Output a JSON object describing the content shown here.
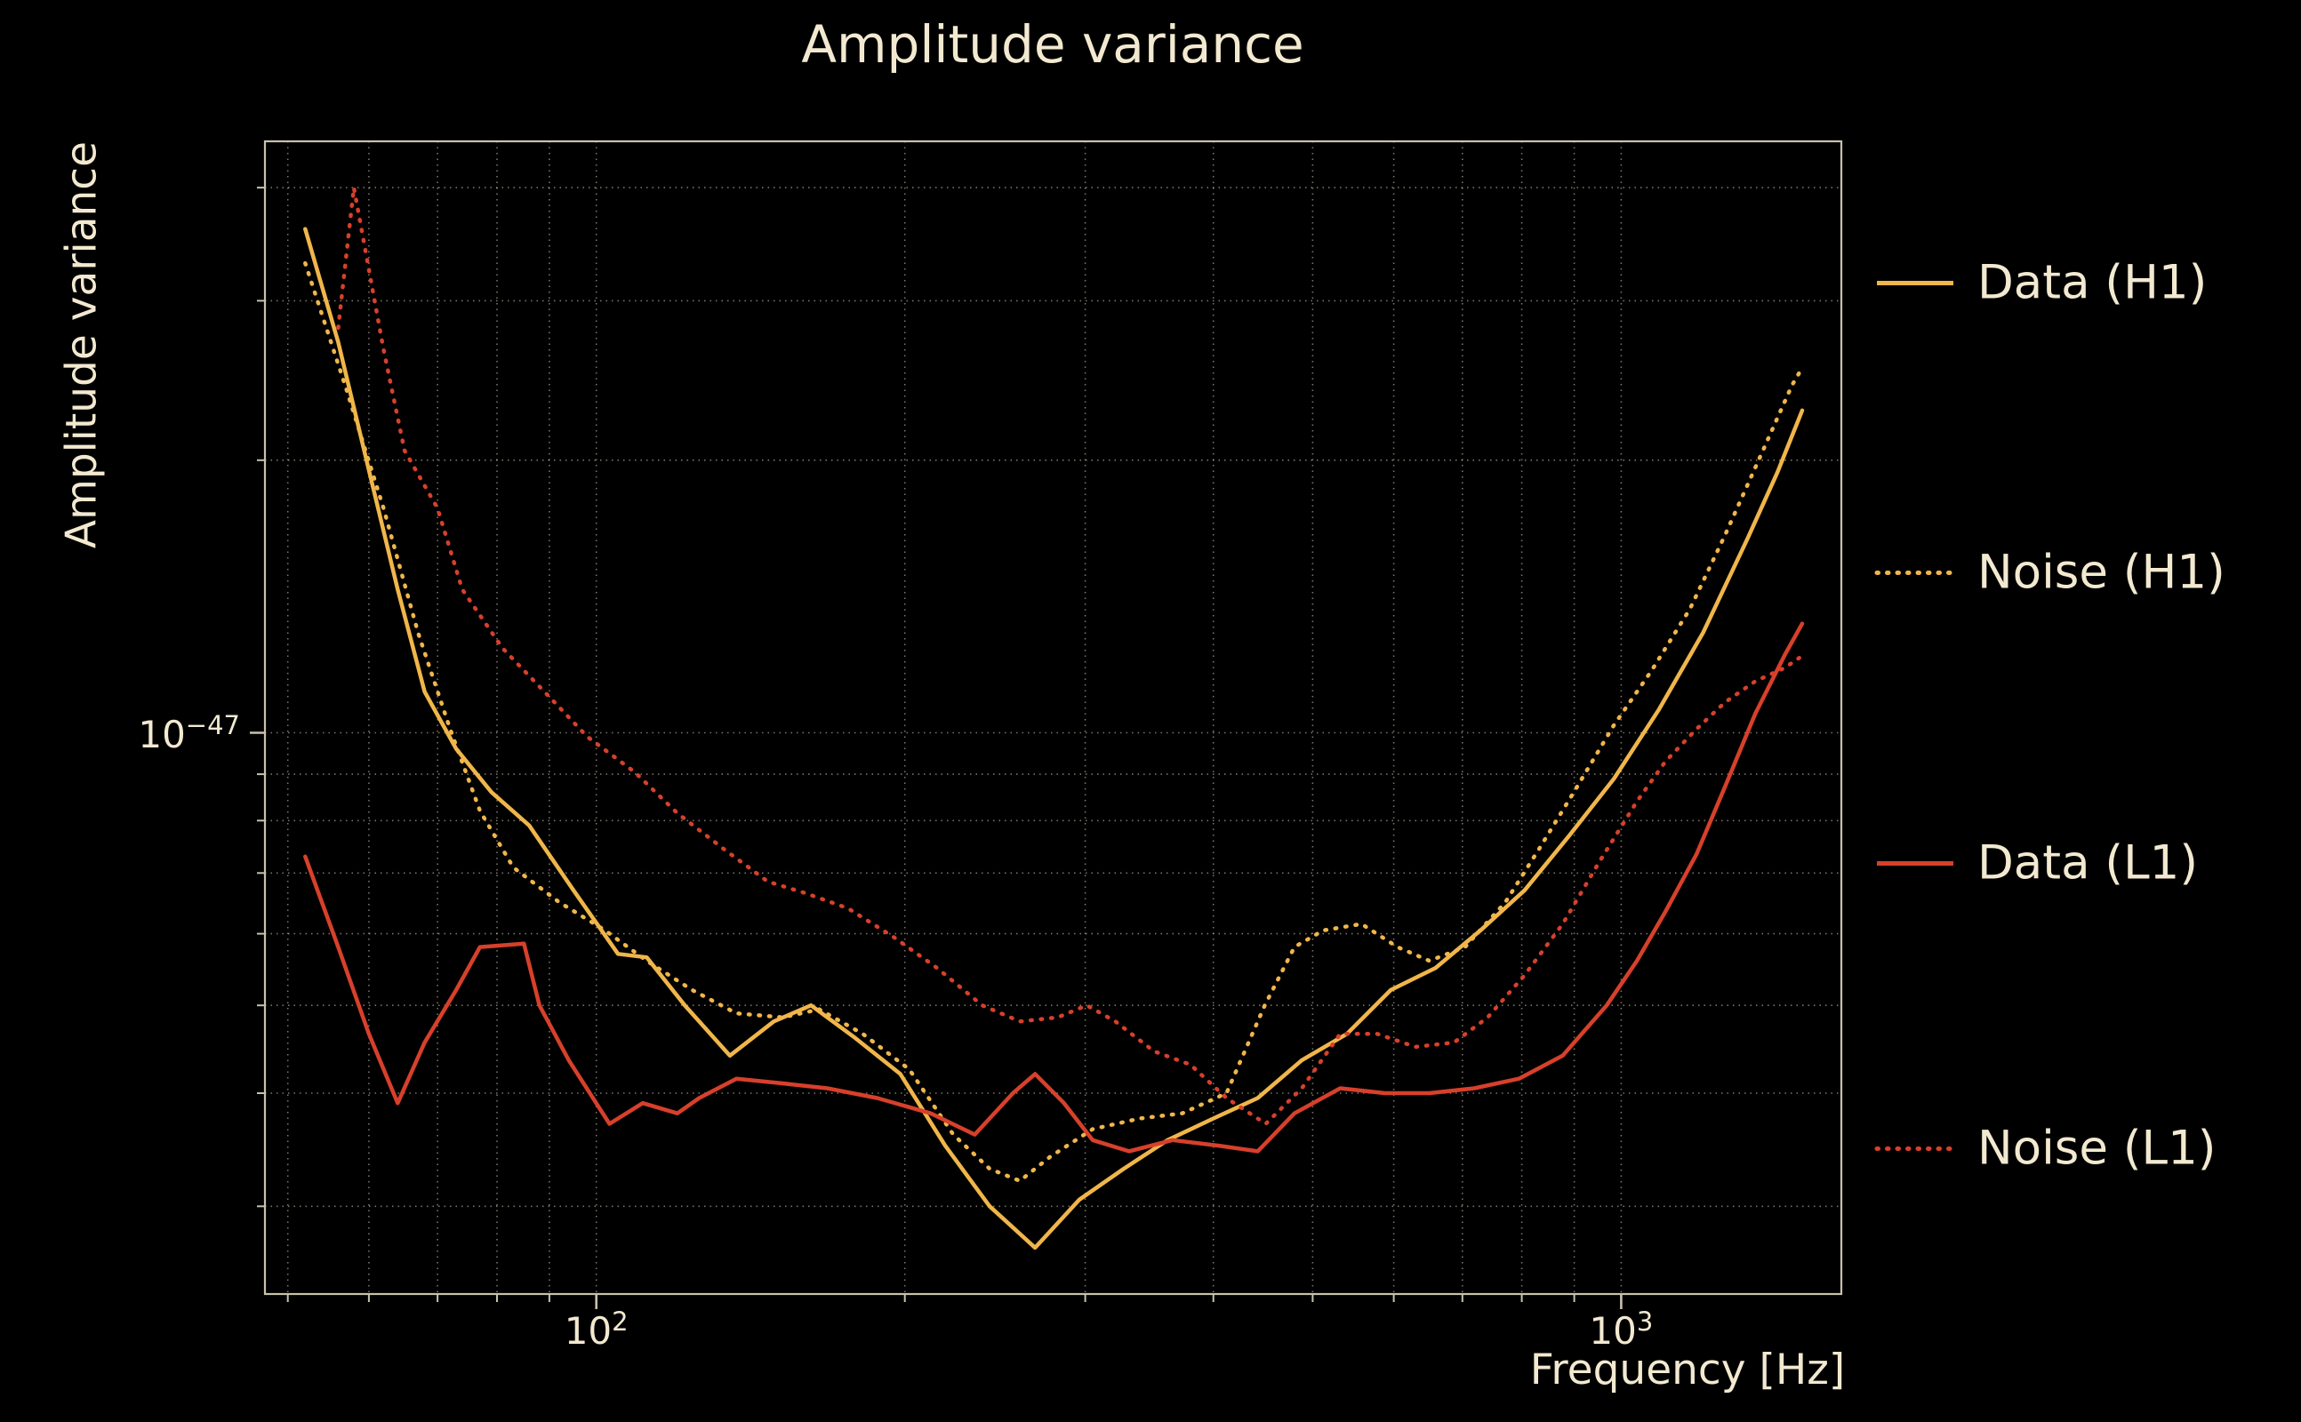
{
  "chart_data": {
    "type": "line",
    "title": "Amplitude variance",
    "xlabel": "Frequency [Hz]",
    "ylabel": "Amplitude variance",
    "xscale": "log",
    "yscale": "log",
    "grid": true,
    "legend_position": "right-outside",
    "background_color": "#000000",
    "text_color": "#f2e9d0",
    "xlim": [
      47.5,
      1640
    ],
    "ylim": [
      2.4e-48,
      4.5e-47
    ],
    "x_gridlines": [
      50,
      60,
      70,
      80,
      90,
      100,
      200,
      300,
      400,
      500,
      600,
      700,
      800,
      900,
      1000
    ],
    "y_gridlines": [
      3e-48,
      4e-48,
      5e-48,
      6e-48,
      7e-48,
      8e-48,
      9e-48,
      1e-47,
      2e-47,
      3e-47,
      4e-47
    ],
    "x_ticks": [
      {
        "value": 100,
        "base": "10",
        "exp": "2"
      },
      {
        "value": 1000,
        "base": "10",
        "exp": "3"
      }
    ],
    "y_ticks": [
      {
        "value": 1e-47,
        "base": "10",
        "exp": "−47"
      }
    ],
    "series": [
      {
        "name": "Data (H1)",
        "color": "#f0b64a",
        "line_style": "solid",
        "points": [
          [
            52,
            3.6e-47
          ],
          [
            56,
            2.7e-47
          ],
          [
            60,
            1.95e-47
          ],
          [
            64,
            1.44e-47
          ],
          [
            68,
            1.11e-47
          ],
          [
            73,
            9.6e-48
          ],
          [
            79,
            8.6e-48
          ],
          [
            86,
            7.9e-48
          ],
          [
            95,
            6.7e-48
          ],
          [
            105,
            5.7e-48
          ],
          [
            112,
            5.65e-48
          ],
          [
            122,
            5e-48
          ],
          [
            135,
            4.4e-48
          ],
          [
            149,
            4.8e-48
          ],
          [
            162,
            5e-48
          ],
          [
            179,
            4.6e-48
          ],
          [
            198,
            4.2e-48
          ],
          [
            219,
            3.5e-48
          ],
          [
            242,
            3e-48
          ],
          [
            268,
            2.7e-48
          ],
          [
            296,
            3.05e-48
          ],
          [
            327,
            3.3e-48
          ],
          [
            361,
            3.55e-48
          ],
          [
            400,
            3.75e-48
          ],
          [
            442,
            3.95e-48
          ],
          [
            488,
            4.35e-48
          ],
          [
            540,
            4.65e-48
          ],
          [
            596,
            5.2e-48
          ],
          [
            659,
            5.5e-48
          ],
          [
            729,
            6.05e-48
          ],
          [
            805,
            6.7e-48
          ],
          [
            890,
            7.7e-48
          ],
          [
            984,
            8.9e-48
          ],
          [
            1088,
            1.06e-47
          ],
          [
            1202,
            1.29e-47
          ],
          [
            1329,
            1.64e-47
          ],
          [
            1421,
            1.94e-47
          ],
          [
            1502,
            2.27e-47
          ]
        ]
      },
      {
        "name": "Noise (H1)",
        "color": "#f0b64a",
        "line_style": "dotted",
        "points": [
          [
            52,
            3.3e-47
          ],
          [
            57,
            2.4e-47
          ],
          [
            62,
            1.77e-47
          ],
          [
            67,
            1.29e-47
          ],
          [
            72,
            1.01e-47
          ],
          [
            77,
            8.2e-48
          ],
          [
            83,
            7.1e-48
          ],
          [
            92,
            6.5e-48
          ],
          [
            102,
            6.05e-48
          ],
          [
            112,
            5.6e-48
          ],
          [
            124,
            5.2e-48
          ],
          [
            137,
            4.9e-48
          ],
          [
            152,
            4.85e-48
          ],
          [
            165,
            4.95e-48
          ],
          [
            182,
            4.65e-48
          ],
          [
            202,
            4.25e-48
          ],
          [
            223,
            3.6e-48
          ],
          [
            242,
            3.3e-48
          ],
          [
            259,
            3.2e-48
          ],
          [
            277,
            3.4e-48
          ],
          [
            305,
            3.65e-48
          ],
          [
            339,
            3.75e-48
          ],
          [
            373,
            3.8e-48
          ],
          [
            412,
            4e-48
          ],
          [
            449,
            5e-48
          ],
          [
            480,
            5.8e-48
          ],
          [
            512,
            6.05e-48
          ],
          [
            558,
            6.15e-48
          ],
          [
            605,
            5.8e-48
          ],
          [
            650,
            5.6e-48
          ],
          [
            704,
            5.8e-48
          ],
          [
            771,
            6.5e-48
          ],
          [
            832,
            7.45e-48
          ],
          [
            902,
            8.65e-48
          ],
          [
            984,
            1.02e-47
          ],
          [
            1070,
            1.17e-47
          ],
          [
            1167,
            1.37e-47
          ],
          [
            1262,
            1.65e-47
          ],
          [
            1375,
            2.05e-47
          ],
          [
            1468,
            2.42e-47
          ],
          [
            1502,
            2.53e-47
          ]
        ]
      },
      {
        "name": "Data (L1)",
        "color": "#d7402b",
        "line_style": "solid",
        "points": [
          [
            52,
            7.3e-48
          ],
          [
            56,
            5.8e-48
          ],
          [
            60,
            4.65e-48
          ],
          [
            64,
            3.9e-48
          ],
          [
            68,
            4.55e-48
          ],
          [
            73,
            5.2e-48
          ],
          [
            77,
            5.8e-48
          ],
          [
            85,
            5.85e-48
          ],
          [
            88,
            5e-48
          ],
          [
            94,
            4.35e-48
          ],
          [
            103,
            3.7e-48
          ],
          [
            111,
            3.9e-48
          ],
          [
            120,
            3.8e-48
          ],
          [
            126,
            3.95e-48
          ],
          [
            137,
            4.15e-48
          ],
          [
            152,
            4.1e-48
          ],
          [
            168,
            4.05e-48
          ],
          [
            188,
            3.95e-48
          ],
          [
            212,
            3.8e-48
          ],
          [
            234,
            3.6e-48
          ],
          [
            255,
            4e-48
          ],
          [
            268,
            4.2e-48
          ],
          [
            286,
            3.9e-48
          ],
          [
            305,
            3.55e-48
          ],
          [
            331,
            3.45e-48
          ],
          [
            365,
            3.55e-48
          ],
          [
            405,
            3.5e-48
          ],
          [
            442,
            3.45e-48
          ],
          [
            480,
            3.8e-48
          ],
          [
            532,
            4.05e-48
          ],
          [
            588,
            4e-48
          ],
          [
            650,
            4e-48
          ],
          [
            719,
            4.05e-48
          ],
          [
            795,
            4.15e-48
          ],
          [
            877,
            4.4e-48
          ],
          [
            968,
            5e-48
          ],
          [
            1036,
            5.6e-48
          ],
          [
            1105,
            6.35e-48
          ],
          [
            1185,
            7.35e-48
          ],
          [
            1262,
            8.7e-48
          ],
          [
            1352,
            1.05e-47
          ],
          [
            1445,
            1.22e-47
          ],
          [
            1502,
            1.32e-47
          ]
        ]
      },
      {
        "name": "Noise (L1)",
        "color": "#d7402b",
        "line_style": "dotted",
        "points": [
          [
            56,
            2.8e-47
          ],
          [
            58,
            4e-47
          ],
          [
            62,
            2.65e-47
          ],
          [
            65,
            2.05e-47
          ],
          [
            70,
            1.77e-47
          ],
          [
            74,
            1.44e-47
          ],
          [
            81,
            1.24e-47
          ],
          [
            89,
            1.11e-47
          ],
          [
            98,
            9.9e-48
          ],
          [
            109,
            9.05e-48
          ],
          [
            120,
            8.15e-48
          ],
          [
            133,
            7.45e-48
          ],
          [
            147,
            6.85e-48
          ],
          [
            160,
            6.65e-48
          ],
          [
            176,
            6.4e-48
          ],
          [
            195,
            5.95e-48
          ],
          [
            215,
            5.5e-48
          ],
          [
            238,
            5e-48
          ],
          [
            259,
            4.8e-48
          ],
          [
            282,
            4.85e-48
          ],
          [
            301,
            5e-48
          ],
          [
            321,
            4.8e-48
          ],
          [
            350,
            4.45e-48
          ],
          [
            380,
            4.3e-48
          ],
          [
            412,
            3.95e-48
          ],
          [
            450,
            3.7e-48
          ],
          [
            488,
            4.05e-48
          ],
          [
            532,
            4.65e-48
          ],
          [
            578,
            4.65e-48
          ],
          [
            630,
            4.5e-48
          ],
          [
            687,
            4.55e-48
          ],
          [
            741,
            4.85e-48
          ],
          [
            805,
            5.4e-48
          ],
          [
            877,
            6.15e-48
          ],
          [
            952,
            7.2e-48
          ],
          [
            1036,
            8.4e-48
          ],
          [
            1105,
            9.3e-48
          ],
          [
            1185,
            1.01e-47
          ],
          [
            1262,
            1.08e-47
          ],
          [
            1352,
            1.14e-47
          ],
          [
            1445,
            1.18e-47
          ],
          [
            1492,
            1.21e-47
          ]
        ]
      }
    ]
  }
}
